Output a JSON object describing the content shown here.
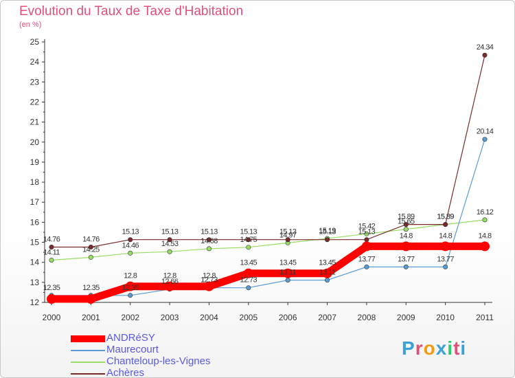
{
  "chart_data": {
    "type": "line",
    "title": "Evolution du Taux de Taxe d'Habitation",
    "subtitle": "(en %)",
    "xlabel": "",
    "ylabel": "",
    "ylim": [
      12,
      25
    ],
    "yticks": [
      "12",
      "13",
      "14",
      "15",
      "16",
      "17",
      "18",
      "19",
      "20",
      "21",
      "22",
      "23",
      "24",
      "25"
    ],
    "categories": [
      "2000",
      "2001",
      "2002",
      "2003",
      "2004",
      "2005",
      "2006",
      "2007",
      "2008",
      "2009",
      "2010",
      "2011"
    ],
    "grid": false,
    "legend_position": "bottom-left",
    "series": [
      {
        "name": "ANDRéSY",
        "color": "#ff0000",
        "values": [
          12.17,
          12.17,
          12.8,
          12.8,
          12.8,
          13.45,
          13.45,
          13.45,
          14.8,
          14.8,
          14.8,
          14.8
        ],
        "labels": [
          "",
          "",
          "12.8",
          "12.8",
          "12.8",
          "13.45",
          "13.45",
          "13.45",
          "",
          "14.8",
          "14.8",
          "14.8"
        ]
      },
      {
        "name": "Maurecourt",
        "color": "#5b9bd5",
        "values": [
          12.35,
          12.35,
          12.35,
          12.66,
          12.73,
          12.73,
          13.11,
          13.11,
          13.77,
          13.77,
          13.77,
          20.14
        ],
        "labels": [
          "12.35",
          "12.35",
          "12.35",
          "12.66",
          "12.73",
          "12.73",
          "13.11",
          "13.11",
          "13.77",
          "13.77",
          "13.77",
          "20.14"
        ]
      },
      {
        "name": "Chanteloup-les-Vignes",
        "color": "#99dd66",
        "values": [
          14.11,
          14.25,
          14.46,
          14.53,
          14.68,
          14.75,
          14.97,
          15.19,
          15.42,
          15.65,
          15.89,
          16.12
        ],
        "labels": [
          "14.11",
          "14.25",
          "14.46",
          "14.53",
          "14.68",
          "14.75",
          "14.97",
          "15.19",
          "15.42",
          "15.65",
          "15.89",
          "16.12"
        ]
      },
      {
        "name": "Achères",
        "color": "#7a2a2a",
        "values": [
          14.76,
          14.76,
          15.13,
          15.13,
          15.13,
          15.13,
          15.13,
          15.13,
          15.13,
          15.89,
          15.89,
          24.34
        ],
        "labels": [
          "14.76",
          "14.76",
          "15.13",
          "15.13",
          "15.13",
          "15.13",
          "15.13",
          "15.13",
          "15.13",
          "15.89",
          "15.89",
          "24.34"
        ]
      }
    ],
    "brand": "Proxiti"
  }
}
